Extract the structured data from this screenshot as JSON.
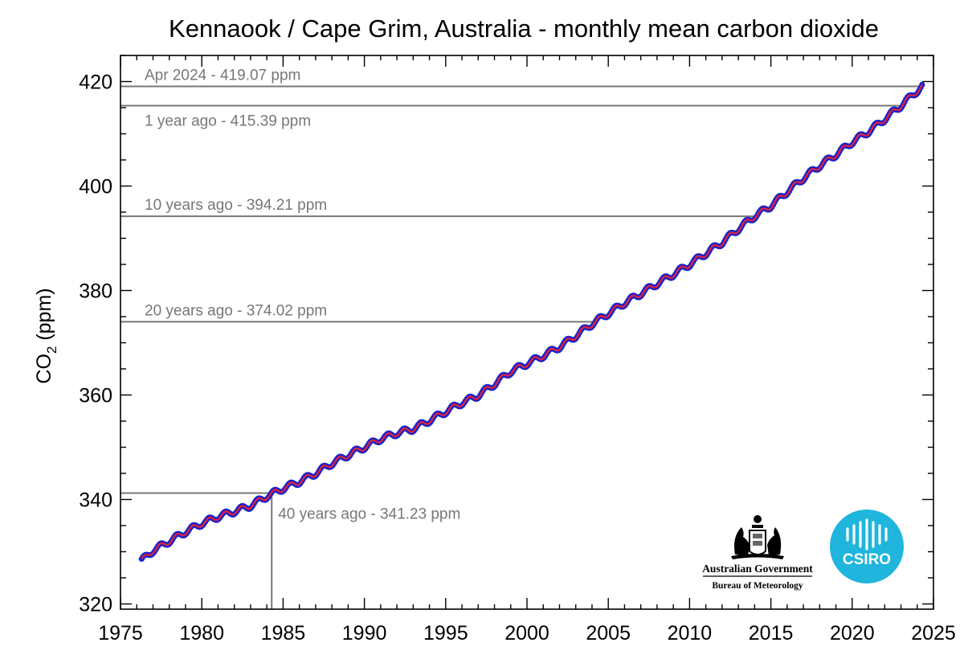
{
  "chart_data": {
    "type": "line",
    "title": "Kennaook / Cape Grim, Australia - monthly mean carbon dioxide",
    "ylabel": "CO",
    "ylabel_subscript": "2",
    "ylabel_unit": " (ppm)",
    "xlabel": "",
    "xlim": [
      1975,
      2025
    ],
    "ylim": [
      319,
      425
    ],
    "x_ticks": [
      1975,
      1980,
      1985,
      1990,
      1995,
      2000,
      2005,
      2010,
      2015,
      2020,
      2025
    ],
    "y_ticks": [
      320,
      340,
      360,
      380,
      400,
      420
    ],
    "grid": false,
    "series": [
      {
        "points": [
          [
            1976.3,
            328.3
          ],
          [
            1977,
            330.2
          ],
          [
            1978,
            332.0
          ],
          [
            1979,
            333.8
          ],
          [
            1980,
            335.4
          ],
          [
            1981,
            336.7
          ],
          [
            1982,
            337.7
          ],
          [
            1983,
            338.8
          ],
          [
            1984,
            340.6
          ],
          [
            1985,
            342.1
          ],
          [
            1986,
            343.4
          ],
          [
            1987,
            345.0
          ],
          [
            1988,
            346.9
          ],
          [
            1989,
            348.5
          ],
          [
            1990,
            350.0
          ],
          [
            1991,
            351.6
          ],
          [
            1992,
            352.7
          ],
          [
            1993,
            353.5
          ],
          [
            1994,
            355.1
          ],
          [
            1995,
            356.8
          ],
          [
            1996,
            358.5
          ],
          [
            1997,
            359.9
          ],
          [
            1998,
            362.1
          ],
          [
            1999,
            364.5
          ],
          [
            2000,
            366.0
          ],
          [
            2001,
            367.5
          ],
          [
            2002,
            369.2
          ],
          [
            2003,
            371.3
          ],
          [
            2004,
            373.6
          ],
          [
            2005,
            375.6
          ],
          [
            2006,
            377.6
          ],
          [
            2007,
            379.4
          ],
          [
            2008,
            381.3
          ],
          [
            2009,
            383.1
          ],
          [
            2010,
            385.0
          ],
          [
            2011,
            387.1
          ],
          [
            2012,
            389.2
          ],
          [
            2013,
            391.8
          ],
          [
            2014,
            394.2
          ],
          [
            2015,
            396.2
          ],
          [
            2016,
            398.9
          ],
          [
            2017,
            401.5
          ],
          [
            2018,
            403.9
          ],
          [
            2019,
            406.0
          ],
          [
            2020,
            408.4
          ],
          [
            2021,
            410.4
          ],
          [
            2022,
            412.8
          ],
          [
            2023,
            415.39
          ],
          [
            2024.3,
            419.07
          ]
        ],
        "marker_color": "#1c22c9",
        "line_color": "#e0223a"
      }
    ],
    "reference_lines": [
      {
        "label": "Apr 2024 - 419.07 ppm",
        "year": 2024.3,
        "value": 419.07,
        "label_pos": "above"
      },
      {
        "label": "1 year  ago - 415.39 ppm",
        "year": 2023.3,
        "value": 415.39,
        "label_pos": "below"
      },
      {
        "label": "10 years ago - 394.21 ppm",
        "year": 2014.3,
        "value": 394.21,
        "label_pos": "above"
      },
      {
        "label": "20 years ago - 374.02 ppm",
        "year": 2004.3,
        "value": 374.02,
        "label_pos": "above"
      },
      {
        "label": "40 years ago - 341.23 ppm",
        "year": 1984.3,
        "value": 341.23,
        "label_pos": "right-of-drop"
      }
    ],
    "colors": {
      "reference_line": "#777777",
      "axis": "#000000"
    }
  },
  "logos": {
    "gov_line1": "Australian Government",
    "gov_line2": "Bureau of Meteorology",
    "csiro": "CSIRO",
    "csiro_color": "#1fb5dc"
  }
}
